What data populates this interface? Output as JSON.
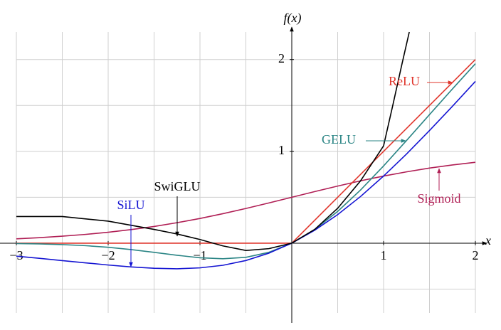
{
  "chart_data": {
    "type": "line",
    "y_label": "f(x)",
    "x_label": "x",
    "xlim": [
      -3,
      2
    ],
    "ylim": [
      -0.76,
      2.3
    ],
    "xticks": [
      {
        "value": -3,
        "label": "−3"
      },
      {
        "value": -2,
        "label": "−2"
      },
      {
        "value": -1,
        "label": "−1"
      },
      1,
      2
    ],
    "yticks": [
      1,
      2
    ],
    "xgrid": [
      -3,
      -2.5,
      -2,
      -1.5,
      -1,
      -0.5,
      0,
      0.5,
      1,
      1.5,
      2
    ],
    "ygrid": [
      -0.5,
      0,
      0.5,
      1,
      1.5,
      2
    ],
    "grid": true,
    "series": [
      {
        "name": "SwiGLU",
        "color": "#000000",
        "x": [
          -3,
          -2.5,
          -2,
          -1.5,
          -1.25,
          -1,
          -0.75,
          -0.5,
          -0.25,
          0,
          0.25,
          0.5,
          0.75,
          1,
          1.1,
          1.2,
          1.28
        ],
        "values": [
          0.29,
          0.29,
          0.24,
          0.15,
          0.1,
          0.04,
          -0.03,
          -0.08,
          -0.06,
          0,
          0.15,
          0.38,
          0.68,
          1.06,
          1.5,
          1.95,
          2.3
        ]
      },
      {
        "name": "SiLU",
        "color": "#1414d2",
        "x": [
          -3,
          -2.75,
          -2.5,
          -2.25,
          -2,
          -1.75,
          -1.5,
          -1.25,
          -1,
          -0.75,
          -0.5,
          -0.25,
          0,
          0.25,
          0.5,
          0.75,
          1,
          1.25,
          1.5,
          1.75,
          2
        ],
        "values": [
          -0.142,
          -0.165,
          -0.19,
          -0.214,
          -0.238,
          -0.259,
          -0.273,
          -0.279,
          -0.269,
          -0.241,
          -0.189,
          -0.109,
          0,
          0.141,
          0.311,
          0.509,
          0.731,
          0.971,
          1.227,
          1.491,
          1.762
        ]
      },
      {
        "name": "GELU",
        "color": "#2b8585",
        "x": [
          -3,
          -2.75,
          -2.5,
          -2.25,
          -2,
          -1.75,
          -1.5,
          -1.25,
          -1,
          -0.75,
          -0.5,
          -0.25,
          0,
          0.25,
          0.5,
          0.75,
          1,
          1.25,
          1.5,
          1.75,
          2
        ],
        "values": [
          -0.004,
          -0.008,
          -0.016,
          -0.027,
          -0.045,
          -0.07,
          -0.1,
          -0.132,
          -0.159,
          -0.17,
          -0.154,
          -0.1,
          0,
          0.15,
          0.346,
          0.58,
          0.841,
          1.118,
          1.4,
          1.68,
          1.955
        ]
      },
      {
        "name": "ReLU",
        "color": "#e0352b",
        "x": [
          -3,
          0,
          2
        ],
        "values": [
          0,
          0,
          2
        ]
      },
      {
        "name": "Sigmoid",
        "color": "#b01f55",
        "x": [
          -3,
          -2.75,
          -2.5,
          -2.25,
          -2,
          -1.75,
          -1.5,
          -1.25,
          -1,
          -0.75,
          -0.5,
          -0.25,
          0,
          0.25,
          0.5,
          0.75,
          1,
          1.25,
          1.5,
          1.75,
          2
        ],
        "values": [
          0.047,
          0.06,
          0.076,
          0.095,
          0.119,
          0.148,
          0.182,
          0.223,
          0.269,
          0.321,
          0.378,
          0.438,
          0.5,
          0.562,
          0.622,
          0.679,
          0.731,
          0.777,
          0.818,
          0.852,
          0.881
        ]
      }
    ]
  }
}
